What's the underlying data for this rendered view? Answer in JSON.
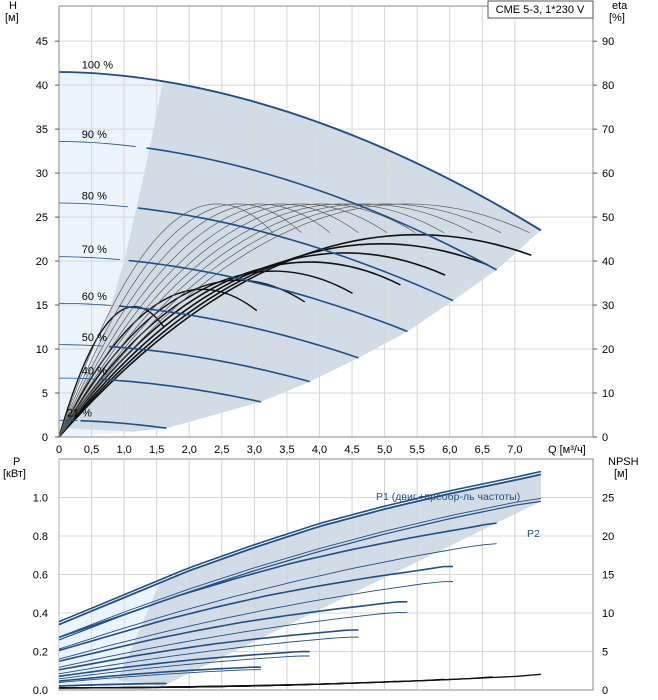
{
  "title_box": "CME 5-3, 1*230 V",
  "top_chart": {
    "y_axis_label_line1": "H",
    "y_axis_label_line2": "[м]",
    "y2_axis_label_line1": "eta",
    "y2_axis_label_line2": "[%]",
    "x_axis_label": "Q [м³/ч]"
  },
  "bottom_chart": {
    "y_axis_label_line1": "P",
    "y_axis_label_line2": "[кВт]",
    "y2_axis_label_line1": "NPSH",
    "y2_axis_label_line2": "[м]",
    "legend_p1": "P1 (двиг.+преобр-ль частоты)",
    "legend_p2": "P2"
  },
  "colors": {
    "envelope_fill": "#d2dce7",
    "light_zone_fill": "#ebf3fc",
    "curve_blue": "#1f4f86",
    "curve_black": "#111111",
    "curve_thin": "#5a5a5a",
    "grid": "#d7d7d7"
  },
  "chart_data": [
    {
      "type": "line",
      "name": "head",
      "xlabel": "Q [м³/ч]",
      "ylabel": "H [м]",
      "y2label": "eta [%]",
      "xlim": [
        0,
        8.2
      ],
      "ylim": [
        0,
        49
      ],
      "y2lim": [
        0,
        98
      ],
      "x_ticks": [
        "0",
        "0,5",
        "1,0",
        "1,5",
        "2,0",
        "2,5",
        "3,0",
        "3,5",
        "4,0",
        "4,5",
        "5,0",
        "5,5",
        "6,0",
        "6,5",
        "7,0"
      ],
      "y_ticks": [
        "0",
        "5",
        "10",
        "15",
        "20",
        "25",
        "30",
        "35",
        "40",
        "45"
      ],
      "y2_ticks": [
        "0",
        "10",
        "20",
        "30",
        "40",
        "50",
        "60",
        "70",
        "80",
        "90"
      ],
      "speed_labels": [
        "100 %",
        "90 %",
        "80 %",
        "70 %",
        "60 %",
        "50 %",
        "40 %",
        "21 %"
      ],
      "grid": true,
      "head_curves": [
        {
          "speed_label": "100 %",
          "pct": 100,
          "H0": 41.5,
          "Qmax": 7.4,
          "Hmax_q": 23.5
        },
        {
          "speed_label": "90 %",
          "pct": 90,
          "H0": 33.6,
          "Qmax": 6.72,
          "Hmax_q": 19.0
        },
        {
          "speed_label": "80 %",
          "pct": 80,
          "H0": 26.6,
          "Qmax": 6.05,
          "Hmax_q": 15.5
        },
        {
          "speed_label": "70 %",
          "pct": 70,
          "H0": 20.5,
          "Qmax": 5.35,
          "Hmax_q": 12.0
        },
        {
          "speed_label": "60 %",
          "pct": 60,
          "H0": 15.2,
          "Qmax": 4.6,
          "Hmax_q": 9.0
        },
        {
          "speed_label": "50 %",
          "pct": 50,
          "H0": 10.5,
          "Qmax": 3.85,
          "Hmax_q": 6.3
        },
        {
          "speed_label": "40 %",
          "pct": 40,
          "H0": 6.7,
          "Qmax": 3.1,
          "Hmax_q": 4.0
        },
        {
          "speed_label": "21 %",
          "pct": 21,
          "H0": 1.9,
          "Qmax": 1.65,
          "Hmax_q": 1.0
        }
      ],
      "efficiency_peak_eta": 46,
      "efficiency_peak_q": 5.5
    },
    {
      "type": "line",
      "name": "power_npsh",
      "ylabel": "P [кВт]",
      "y2label": "NPSH [м]",
      "xlim": [
        0,
        8.2
      ],
      "ylim": [
        0,
        1.2
      ],
      "y2lim": [
        0,
        30
      ],
      "y_ticks": [
        "0.0",
        "0.2",
        "0.4",
        "0.6",
        "0.8",
        "1.0"
      ],
      "y2_ticks": [
        "0",
        "5",
        "10",
        "15",
        "20",
        "25"
      ],
      "grid": true,
      "series": [
        {
          "name": "P1 (двиг.+преобр-ль частоты)",
          "x": [
            0,
            1,
            2,
            3,
            4,
            5,
            6,
            7,
            7.4
          ],
          "values": [
            0.34,
            0.48,
            0.62,
            0.74,
            0.85,
            0.94,
            1.02,
            1.09,
            1.12
          ]
        },
        {
          "name": "P2",
          "x": [
            0,
            1,
            2,
            3,
            4,
            5,
            6,
            7,
            7.4
          ],
          "values": [
            0.26,
            0.39,
            0.51,
            0.62,
            0.72,
            0.81,
            0.89,
            0.96,
            0.98
          ]
        },
        {
          "x": [
            0,
            1,
            2,
            3,
            4,
            5,
            6,
            7,
            7.4
          ],
          "values": [
            0.02,
            0.07,
            0.17,
            0.32,
            0.5,
            0.78,
            1.1,
            1.5,
            1.78
          ]
        }
      ]
    }
  ]
}
